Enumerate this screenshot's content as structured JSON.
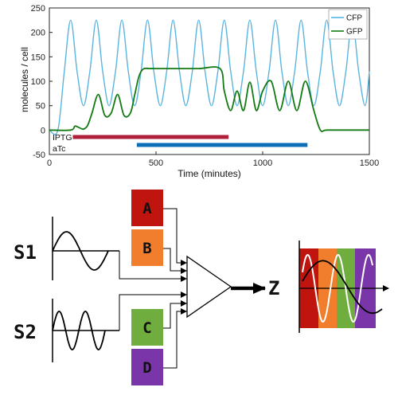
{
  "chart_data": {
    "type": "line",
    "xlabel": "Time (minutes)",
    "ylabel": "molecules / cell",
    "xlim": [
      0,
      1500
    ],
    "ylim": [
      -50,
      250
    ],
    "x_ticks": [
      0,
      500,
      1000,
      1500
    ],
    "y_ticks": [
      -50,
      0,
      50,
      100,
      150,
      200,
      250
    ],
    "x_tick_labels": [
      "0",
      "500",
      "1000",
      "1500"
    ],
    "y_tick_labels": [
      "-50",
      "0",
      "50",
      "100",
      "150",
      "200",
      "250"
    ],
    "legend_position": "top-right",
    "series": [
      {
        "name": "CFP",
        "color": "#5ab4e0",
        "x": [
          0,
          40,
          70,
          100,
          130,
          160,
          190,
          220,
          250,
          280,
          310,
          340,
          370,
          400,
          430,
          460,
          490,
          520,
          550,
          580,
          610,
          640,
          670,
          700,
          730,
          760,
          790,
          820,
          850,
          880,
          910,
          940,
          970,
          1000,
          1030,
          1060,
          1090,
          1120,
          1150,
          1180,
          1210,
          1240,
          1270,
          1300,
          1330,
          1360,
          1390,
          1420,
          1450,
          1480,
          1500
        ],
        "y": [
          0,
          0,
          120,
          225,
          120,
          50,
          120,
          225,
          120,
          50,
          120,
          225,
          120,
          50,
          120,
          225,
          120,
          50,
          120,
          225,
          120,
          50,
          120,
          225,
          120,
          50,
          120,
          225,
          120,
          50,
          120,
          225,
          120,
          50,
          120,
          225,
          120,
          50,
          120,
          225,
          120,
          50,
          120,
          225,
          120,
          50,
          120,
          225,
          120,
          50,
          120
        ]
      },
      {
        "name": "GFP",
        "color": "#127a12",
        "x": [
          0,
          100,
          120,
          140,
          160,
          180,
          200,
          230,
          260,
          290,
          320,
          350,
          380,
          400,
          420,
          440,
          470,
          500,
          600,
          700,
          800,
          820,
          850,
          880,
          910,
          940,
          970,
          1000,
          1040,
          1080,
          1120,
          1160,
          1200,
          1240,
          1270,
          1300,
          1400,
          1500
        ],
        "y": [
          0,
          0,
          8,
          5,
          2,
          10,
          35,
          73,
          30,
          35,
          73,
          30,
          35,
          72,
          110,
          125,
          126,
          126,
          126,
          126,
          126,
          80,
          40,
          80,
          40,
          98,
          40,
          80,
          100,
          40,
          100,
          40,
          100,
          40,
          0,
          0,
          0,
          0
        ]
      }
    ],
    "inducers": [
      {
        "name": "IPTG",
        "start": 110,
        "end": 840,
        "color": "#b0203a"
      },
      {
        "name": "aTc",
        "start": 410,
        "end": 1210,
        "color": "#0a6fb8"
      }
    ]
  },
  "diagram": {
    "inputs": [
      {
        "label": "S1"
      },
      {
        "label": "S2"
      }
    ],
    "boxes": [
      {
        "label": "A",
        "color": "#c0140f"
      },
      {
        "label": "B",
        "color": "#f07e2c"
      },
      {
        "label": "C",
        "color": "#6fad3e"
      },
      {
        "label": "D",
        "color": "#7a35a8"
      }
    ],
    "output_label": "Z",
    "output_colors": [
      "#c0140f",
      "#f07e2c",
      "#6fad3e",
      "#7a35a8"
    ]
  }
}
